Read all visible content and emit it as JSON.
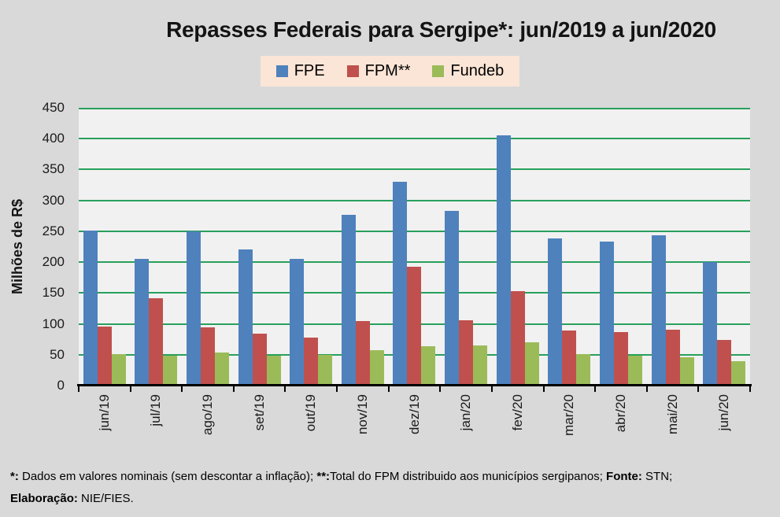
{
  "title": "Repasses Federais para Sergipe*: jun/2019 a jun/2020",
  "legend": {
    "items": [
      {
        "label": "FPE",
        "color": "#4F81BD"
      },
      {
        "label": "FPM**",
        "color": "#C0504D"
      },
      {
        "label": "Fundeb",
        "color": "#9BBB59"
      }
    ]
  },
  "chart_data": {
    "type": "bar",
    "title": "Repasses Federais para Sergipe*: jun/2019 a jun/2020",
    "ylabel": "Milhões de R$",
    "xlabel": "",
    "ylim": [
      0,
      450
    ],
    "yticks": [
      0,
      50,
      100,
      150,
      200,
      250,
      300,
      350,
      400,
      450
    ],
    "grid": true,
    "legend_position": "top",
    "categories": [
      "jun/19",
      "jul/19",
      "ago/19",
      "set/19",
      "out/19",
      "nov/19",
      "dez/19",
      "jan/20",
      "fev/20",
      "mar/20",
      "abr/20",
      "mai/20",
      "jun/20"
    ],
    "series": [
      {
        "name": "FPE",
        "color": "#4F81BD",
        "values": [
          251,
          205,
          250,
          221,
          205,
          277,
          330,
          283,
          405,
          238,
          233,
          243,
          200
        ]
      },
      {
        "name": "FPM**",
        "color": "#C0504D",
        "values": [
          95,
          142,
          94,
          84,
          78,
          105,
          192,
          106,
          153,
          89,
          87,
          91,
          74
        ]
      },
      {
        "name": "Fundeb",
        "color": "#9BBB59",
        "values": [
          51,
          49,
          53,
          48,
          50,
          57,
          64,
          65,
          70,
          51,
          49,
          46,
          40
        ]
      }
    ]
  },
  "footnote": {
    "segments": [
      {
        "text": "*:",
        "bold": true
      },
      {
        "text": " Dados em valores nominais (sem descontar a inflação); ",
        "bold": false
      },
      {
        "text": "**:",
        "bold": true
      },
      {
        "text": "Total do FPM distribuido aos municípios sergipanos; ",
        "bold": false
      },
      {
        "text": "Fonte:",
        "bold": true
      },
      {
        "text": " STN;",
        "bold": false,
        "break_after": true
      },
      {
        "text": "Elaboração:",
        "bold": true
      },
      {
        "text": " NIE/FIES.",
        "bold": false
      }
    ]
  },
  "colors": {
    "page_bg": "#D9D9D9",
    "plot_bg": "#F1F1F1",
    "gridline": "#28A05C",
    "legend_bg": "#FBE5D6",
    "axis": "#000000",
    "text": "#1A1A1A"
  }
}
